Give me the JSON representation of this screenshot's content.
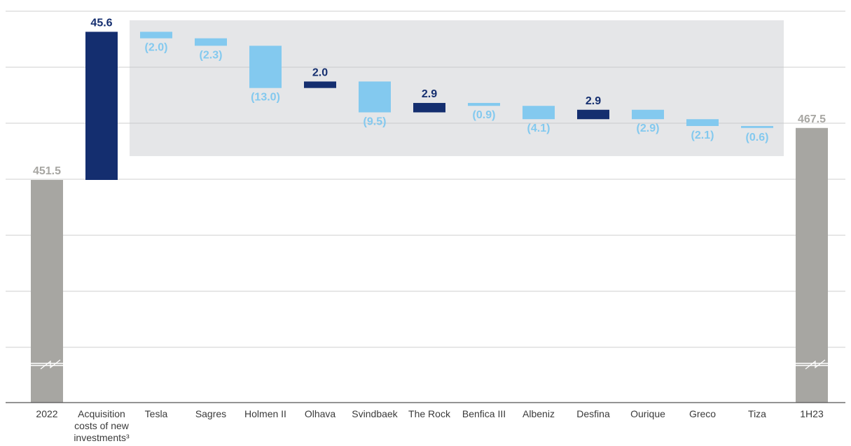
{
  "chart_data": {
    "type": "bar",
    "subtype": "waterfall",
    "title": "",
    "xlabel": "",
    "ylabel": "",
    "grid": true,
    "axis_break": true,
    "colors": {
      "total": "#a7a6a2",
      "increase": "#142e6f",
      "decrease": "#83c9ef",
      "highlight_band": "#e5e6e8",
      "gridline": "#cfcfcf",
      "axis": "#555555",
      "label_text": "#3a3a3a"
    },
    "categories": [
      {
        "label_lines": [
          "2022"
        ]
      },
      {
        "label_lines": [
          "Acquisition",
          "costs of new",
          "investments³"
        ]
      },
      {
        "label_lines": [
          "Tesla"
        ]
      },
      {
        "label_lines": [
          "Sagres"
        ]
      },
      {
        "label_lines": [
          "Holmen II"
        ]
      },
      {
        "label_lines": [
          "Olhava"
        ]
      },
      {
        "label_lines": [
          "Svindbaek"
        ]
      },
      {
        "label_lines": [
          "The Rock"
        ]
      },
      {
        "label_lines": [
          "Benfica III"
        ]
      },
      {
        "label_lines": [
          "Albeniz"
        ]
      },
      {
        "label_lines": [
          "Desfina"
        ]
      },
      {
        "label_lines": [
          "Ourique"
        ]
      },
      {
        "label_lines": [
          "Greco"
        ]
      },
      {
        "label_lines": [
          "Tiza"
        ]
      },
      {
        "label_lines": [
          "1H23"
        ]
      }
    ],
    "bars": [
      {
        "kind": "total",
        "value": 451.5,
        "label": "451.5"
      },
      {
        "kind": "increase",
        "value": 45.6,
        "label": "45.6"
      },
      {
        "kind": "decrease",
        "value": -2.0,
        "label": "(2.0)"
      },
      {
        "kind": "decrease",
        "value": -2.3,
        "label": "(2.3)"
      },
      {
        "kind": "decrease",
        "value": -13.0,
        "label": "(13.0)"
      },
      {
        "kind": "increase",
        "value": 2.0,
        "label": "2.0"
      },
      {
        "kind": "decrease",
        "value": -9.5,
        "label": "(9.5)"
      },
      {
        "kind": "increase",
        "value": 2.9,
        "label": "2.9"
      },
      {
        "kind": "decrease",
        "value": -0.9,
        "label": "(0.9)"
      },
      {
        "kind": "decrease",
        "value": -4.1,
        "label": "(4.1)"
      },
      {
        "kind": "increase",
        "value": 2.9,
        "label": "2.9"
      },
      {
        "kind": "decrease",
        "value": -2.9,
        "label": "(2.9)"
      },
      {
        "kind": "decrease",
        "value": -2.1,
        "label": "(2.1)"
      },
      {
        "kind": "decrease",
        "value": -0.6,
        "label": "(0.6)"
      },
      {
        "kind": "total",
        "value": 467.5,
        "label": "467.5"
      }
    ]
  }
}
